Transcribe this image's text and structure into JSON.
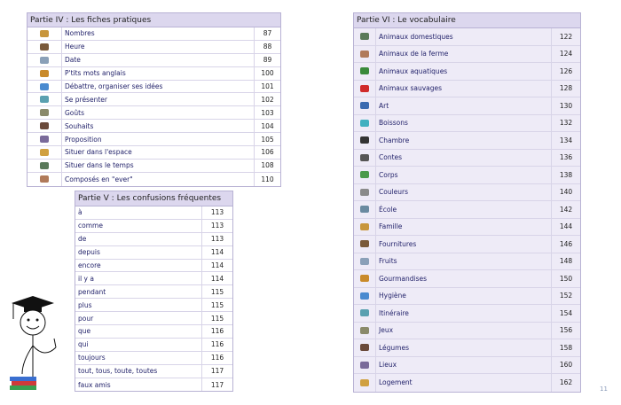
{
  "sections": [
    {
      "title": "Partie IV : Les fiches pratiques",
      "rows": [
        {
          "label": "Nombres",
          "page": 87
        },
        {
          "label": "Heure",
          "page": 88
        },
        {
          "label": "Date",
          "page": 89
        },
        {
          "label": "P'tits mots anglais",
          "page": 100
        },
        {
          "label": "Débattre, organiser ses idées",
          "page": 101
        },
        {
          "label": "Se présenter",
          "page": 102
        },
        {
          "label": "Goûts",
          "page": 103
        },
        {
          "label": "Souhaits",
          "page": 104
        },
        {
          "label": "Proposition",
          "page": 105
        },
        {
          "label": "Situer dans l'espace",
          "page": 106
        },
        {
          "label": "Situer dans le temps",
          "page": 108
        },
        {
          "label": "Composés en \"ever\"",
          "page": 110
        }
      ]
    },
    {
      "title": "Partie V : Les confusions fréquentes",
      "rows": [
        {
          "label": "à",
          "page": 113
        },
        {
          "label": "comme",
          "page": 113
        },
        {
          "label": "de",
          "page": 113
        },
        {
          "label": "depuis",
          "page": 114
        },
        {
          "label": "encore",
          "page": 114
        },
        {
          "label": "il y a",
          "page": 114
        },
        {
          "label": "pendant",
          "page": 115
        },
        {
          "label": "plus",
          "page": 115
        },
        {
          "label": "pour",
          "page": 115
        },
        {
          "label": "que",
          "page": 116
        },
        {
          "label": "qui",
          "page": 116
        },
        {
          "label": "toujours",
          "page": 116
        },
        {
          "label": "tout, tous, toute, toutes",
          "page": 117
        },
        {
          "label": "faux amis",
          "page": 117
        }
      ]
    },
    {
      "title": "Partie VI : Le vocabulaire",
      "rows": [
        {
          "label": "Animaux domestiques",
          "page": 122
        },
        {
          "label": "Animaux de la ferme",
          "page": 124
        },
        {
          "label": "Animaux aquatiques",
          "page": 126
        },
        {
          "label": "Animaux sauvages",
          "page": 128
        },
        {
          "label": "Art",
          "page": 130
        },
        {
          "label": "Boissons",
          "page": 132
        },
        {
          "label": "Chambre",
          "page": 134
        },
        {
          "label": "Contes",
          "page": 136
        },
        {
          "label": "Corps",
          "page": 138
        },
        {
          "label": "Couleurs",
          "page": 140
        },
        {
          "label": "École",
          "page": 142
        },
        {
          "label": "Famille",
          "page": 144
        },
        {
          "label": "Fournitures",
          "page": 146
        },
        {
          "label": "Fruits",
          "page": 148
        },
        {
          "label": "Gourmandises",
          "page": 150
        },
        {
          "label": "Hygiène",
          "page": 152
        },
        {
          "label": "Itinéraire",
          "page": 154
        },
        {
          "label": "Jeux",
          "page": 156
        },
        {
          "label": "Légumes",
          "page": 158
        },
        {
          "label": "Lieux",
          "page": 160
        },
        {
          "label": "Logement",
          "page": 162
        }
      ]
    }
  ],
  "page_number": 11
}
